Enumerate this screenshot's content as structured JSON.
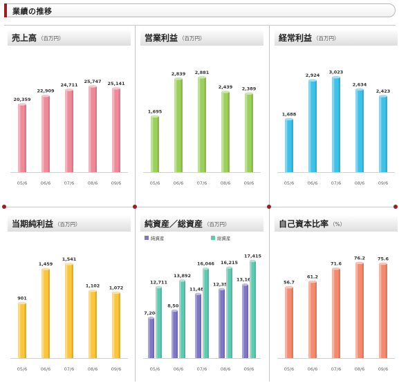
{
  "section": {
    "title": "業績の推移"
  },
  "chart_data": [
    {
      "type": "bar",
      "title": "売上高",
      "unit": "（百万円）",
      "color": "#f08a99",
      "categories": [
        "05/6",
        "06/6",
        "07/6",
        "08/6",
        "09/6"
      ],
      "values": [
        20359,
        22909,
        24711,
        25747,
        25141
      ],
      "labels": [
        "20,359",
        "22,909",
        "24,711",
        "25,747",
        "25,141"
      ],
      "ylim": [
        0,
        33000
      ]
    },
    {
      "type": "bar",
      "title": "営業利益",
      "unit": "（百万円）",
      "color": "#9bd15a",
      "categories": [
        "05/6",
        "06/6",
        "07/6",
        "08/6",
        "09/6"
      ],
      "values": [
        1695,
        2839,
        2881,
        2439,
        2389
      ],
      "labels": [
        "1,695",
        "2,839",
        "2,881",
        "2,439",
        "2,389"
      ],
      "ylim": [
        0,
        3340
      ]
    },
    {
      "type": "bar",
      "title": "経常利益",
      "unit": "（百万円）",
      "color": "#3dc2ea",
      "categories": [
        "05/6",
        "06/6",
        "07/6",
        "08/6",
        "09/6"
      ],
      "values": [
        1688,
        2924,
        3023,
        2634,
        2423
      ],
      "labels": [
        "1,688",
        "2,924",
        "3,023",
        "2,634",
        "2,423"
      ],
      "ylim": [
        0,
        3500
      ]
    },
    {
      "type": "bar",
      "title": "当期純利益",
      "unit": "（百万円）",
      "color": "#fbc63a",
      "categories": [
        "05/6",
        "06/6",
        "07/6",
        "08/6",
        "09/6"
      ],
      "values": [
        901,
        1459,
        1541,
        1102,
        1072
      ],
      "labels": [
        "901",
        "1,459",
        "1,541",
        "1,102",
        "1,072"
      ],
      "ylim": [
        0,
        1800
      ]
    },
    {
      "type": "bar",
      "title": "純資産／総資産",
      "unit": "（百万円）",
      "categories": [
        "05/6",
        "06/6",
        "07/6",
        "08/6",
        "09/6"
      ],
      "ylim": [
        0,
        19700
      ],
      "series": [
        {
          "name": "純資産",
          "color": "#7f76c4",
          "values": [
            7204,
            8502,
            11489,
            12358,
            13165
          ],
          "labels": [
            "7,204",
            "8,502",
            "11,489",
            "12,358",
            "13,165"
          ]
        },
        {
          "name": "総資産",
          "color": "#5ccbb0",
          "values": [
            12711,
            13892,
            16046,
            16215,
            17415
          ],
          "labels": [
            "12,711",
            "13,892",
            "16,046",
            "16,215",
            "17,415"
          ]
        }
      ]
    },
    {
      "type": "bar",
      "title": "自己資本比率",
      "unit": "（%）",
      "color": "#f58a6f",
      "categories": [
        "05/6",
        "06/6",
        "07/6",
        "08/6",
        "09/6"
      ],
      "values": [
        56.7,
        61.2,
        71.6,
        76.2,
        75.6
      ],
      "labels": [
        "56.7",
        "61.2",
        "71.6",
        "76.2",
        "75.6"
      ],
      "ylim": [
        0,
        88
      ]
    }
  ]
}
